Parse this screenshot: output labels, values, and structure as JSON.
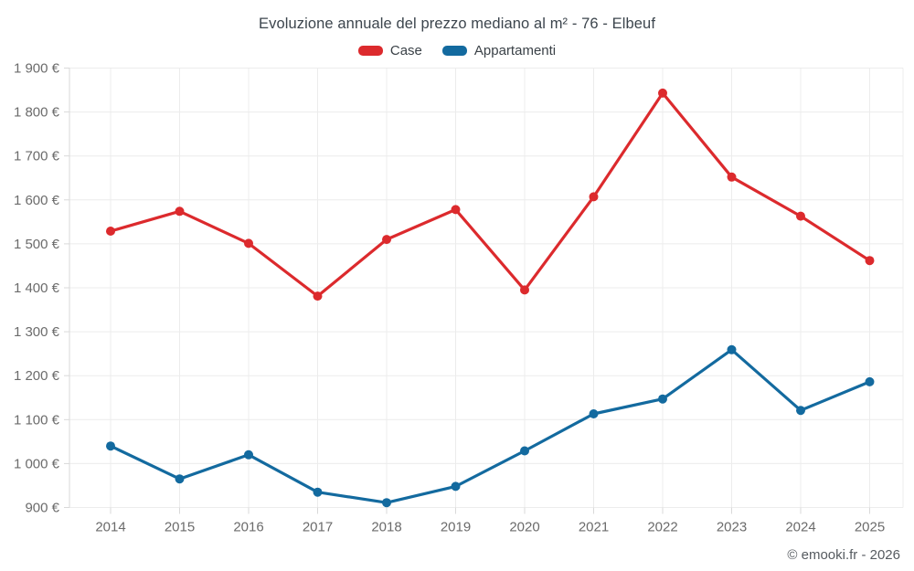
{
  "title": "Evoluzione annuale del prezzo mediano al m² - 76 - Elbeuf",
  "footer": "© emooki.fr - 2026",
  "colors": {
    "case_red": "#dc2a2d",
    "appartamenti_blue": "#136a9f",
    "grid": "#ececec",
    "axis": "#d9d9d9",
    "tick_text": "#6b6b6b",
    "title_text": "#3c454d"
  },
  "legend": [
    {
      "label": "Case",
      "color": "#dc2a2d"
    },
    {
      "label": "Appartamenti",
      "color": "#136a9f"
    }
  ],
  "chart_data": {
    "type": "line",
    "title": "Evoluzione annuale del prezzo mediano al m² - 76 - Elbeuf",
    "xlabel": "",
    "ylabel": "",
    "categories": [
      "2014",
      "2015",
      "2016",
      "2017",
      "2018",
      "2019",
      "2020",
      "2021",
      "2022",
      "2023",
      "2024",
      "2025"
    ],
    "series": [
      {
        "name": "Case",
        "color": "#dc2a2d",
        "values": [
          1529,
          1574,
          1501,
          1381,
          1510,
          1578,
          1395,
          1607,
          1843,
          1652,
          1563,
          1462
        ]
      },
      {
        "name": "Appartamenti",
        "color": "#136a9f",
        "values": [
          1040,
          965,
          1020,
          935,
          911,
          948,
          1029,
          1113,
          1147,
          1259,
          1121,
          1186
        ]
      }
    ],
    "ylim": [
      900,
      1900
    ],
    "ytick_step": 100,
    "ytick_labels": [
      "900 €",
      "1 000 €",
      "1 100 €",
      "1 200 €",
      "1 300 €",
      "1 400 €",
      "1 500 €",
      "1 600 €",
      "1 700 €",
      "1 800 €",
      "1 900 €"
    ],
    "grid": true,
    "legend_position": "top",
    "currency": "€"
  }
}
